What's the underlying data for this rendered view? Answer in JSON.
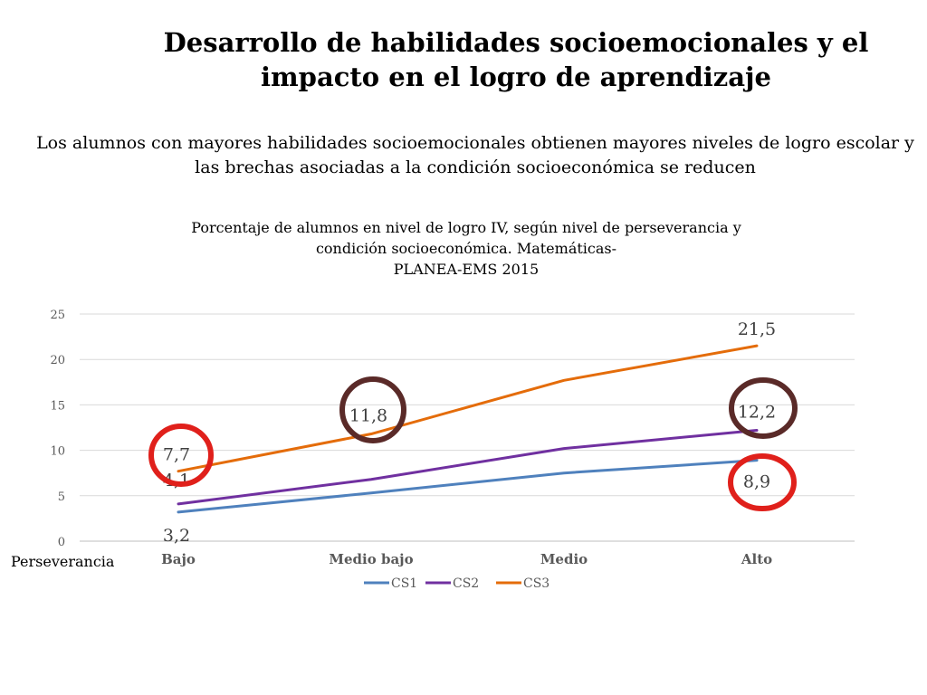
{
  "slide": {
    "title": "Desarrollo de habilidades socioemocionales y el impacto en el logro de aprendizaje",
    "subtitle": "Los alumnos con mayores habilidades socioemocionales obtienen mayores niveles de logro escolar y las brechas asociadas a la condición socioeconómica se reducen"
  },
  "chart_data": {
    "type": "line",
    "title_lines": [
      "Porcentaje de alumnos en nivel de logro IV, según nivel de perseverancia y",
      "condición socioeconómica.  Matemáticas-",
      "PLANEA-EMS 2015"
    ],
    "xlabel": "Perseverancia",
    "ylabel": "",
    "categories": [
      "Bajo",
      "Medio bajo",
      "Medio",
      "Alto"
    ],
    "ylim": [
      0,
      25
    ],
    "yticks": [
      0,
      5,
      10,
      15,
      20,
      25
    ],
    "grid": true,
    "legend_position": "bottom",
    "series": [
      {
        "name": "CS1",
        "color": "#4f81bd",
        "values": [
          3.2,
          5.3,
          7.5,
          8.9
        ]
      },
      {
        "name": "CS2",
        "color": "#7030a0",
        "values": [
          4.1,
          6.8,
          10.2,
          12.2
        ]
      },
      {
        "name": "CS3",
        "color": "#e46c0a",
        "values": [
          7.7,
          11.8,
          17.7,
          21.5
        ]
      }
    ],
    "data_labels": [
      {
        "series": "CS1",
        "category": "Bajo",
        "text": "3,2"
      },
      {
        "series": "CS2",
        "category": "Bajo",
        "text": "4,1"
      },
      {
        "series": "CS3",
        "category": "Bajo",
        "text": "7,7"
      },
      {
        "series": "CS3",
        "category": "Medio bajo",
        "text": "11,8"
      },
      {
        "series": "CS3",
        "category": "Alto",
        "text": "21,5"
      },
      {
        "series": "CS2",
        "category": "Alto",
        "text": "12,2"
      },
      {
        "series": "CS1",
        "category": "Alto",
        "text": "8,9"
      }
    ],
    "highlight_circles": [
      {
        "category": "Bajo",
        "series": "CS3",
        "color": "#e0201b"
      },
      {
        "category": "Medio bajo",
        "series": "CS3",
        "color": "#5a2a28"
      },
      {
        "category": "Alto",
        "series": "CS2",
        "color": "#5a2a28"
      },
      {
        "category": "Alto",
        "series": "CS1",
        "color": "#e0201b"
      }
    ]
  }
}
